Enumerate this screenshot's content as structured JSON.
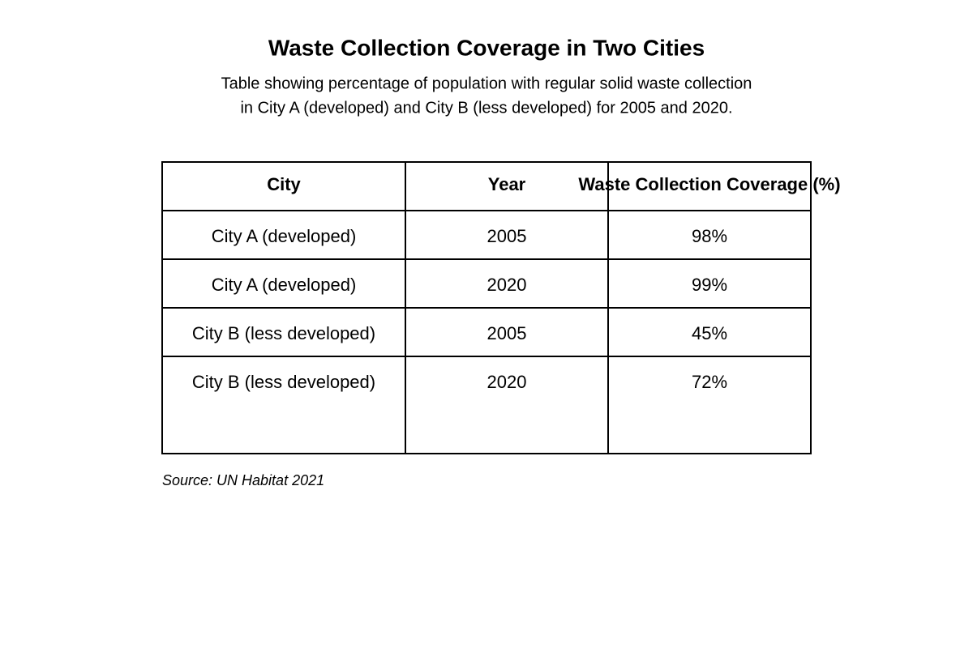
{
  "header": {
    "title": "Waste Collection Coverage in Two Cities",
    "subtitle": [
      "Table showing percentage of population with regular solid waste collection",
      "in City A (developed) and City B (less developed) for 2005 and 2020."
    ]
  },
  "table": {
    "columns": [
      "City",
      "Year",
      "Waste Collection Coverage (%)"
    ],
    "rows": [
      [
        "City A (developed)",
        "2005",
        "98%"
      ],
      [
        "City A (developed)",
        "2020",
        "99%"
      ],
      [
        "City B (less developed)",
        "2005",
        "45%"
      ],
      [
        "City B (less developed)",
        "2020",
        "72%"
      ]
    ]
  },
  "source": "Source: UN Habitat 2021"
}
